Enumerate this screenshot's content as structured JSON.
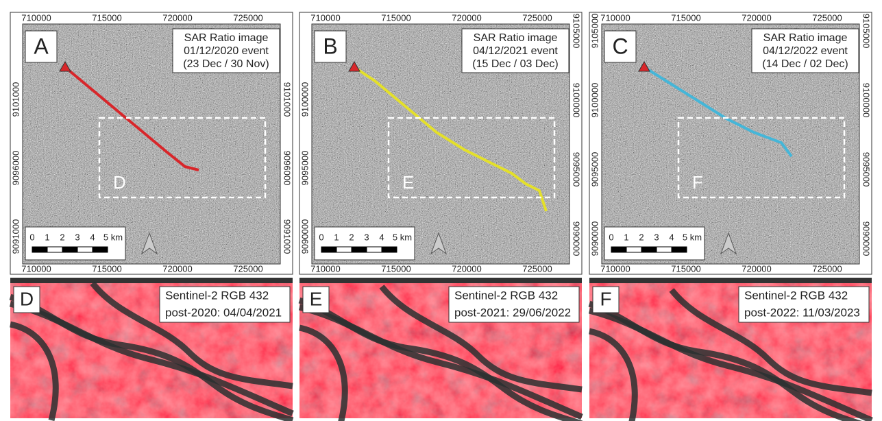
{
  "x_ticks": [
    "710000",
    "715000",
    "720000",
    "725000"
  ],
  "scale_bar": [
    "0",
    "1",
    "2",
    "3",
    "4",
    "5 km"
  ],
  "sar_panels": [
    {
      "letter": "A",
      "title": "SAR Ratio image",
      "event": "01/12/2020 event",
      "dates": "(23 Dec / 30 Nov)",
      "box_label": "D",
      "color": "#d8262a",
      "yticks_left": [
        "9101000",
        "9096000",
        "9091000"
      ],
      "yticks_right": [
        "9101000",
        "9096000",
        "9091000"
      ]
    },
    {
      "letter": "B",
      "title": "SAR Ratio image",
      "event": "04/12/2021 event",
      "dates": "(15 Dec / 03 Dec)",
      "box_label": "E",
      "color": "#e4e02a",
      "yticks_left": [
        "9100000",
        "9095000",
        "9090000"
      ],
      "yticks_right": [
        "9105000",
        "9100000",
        "9095000",
        "9090000"
      ]
    },
    {
      "letter": "C",
      "title": "SAR Ratio image",
      "event": "04/12/2022 event",
      "dates": "(14 Dec / 02 Dec)",
      "box_label": "F",
      "color": "#45b6d8",
      "yticks_left": [
        "9105000",
        "9100000",
        "9095000",
        "9090000"
      ],
      "yticks_right": [
        "9105000",
        "9100000",
        "9095000",
        "9090000"
      ]
    }
  ],
  "sentinel_panels": [
    {
      "letter": "D",
      "title": "Sentinel-2 RGB 432",
      "date": "post-2020: 04/04/2021"
    },
    {
      "letter": "E",
      "title": "Sentinel-2 RGB 432",
      "date": "post-2021: 29/06/2022"
    },
    {
      "letter": "F",
      "title": "Sentinel-2 RGB 432",
      "date": "post-2022: 11/03/2023"
    }
  ]
}
